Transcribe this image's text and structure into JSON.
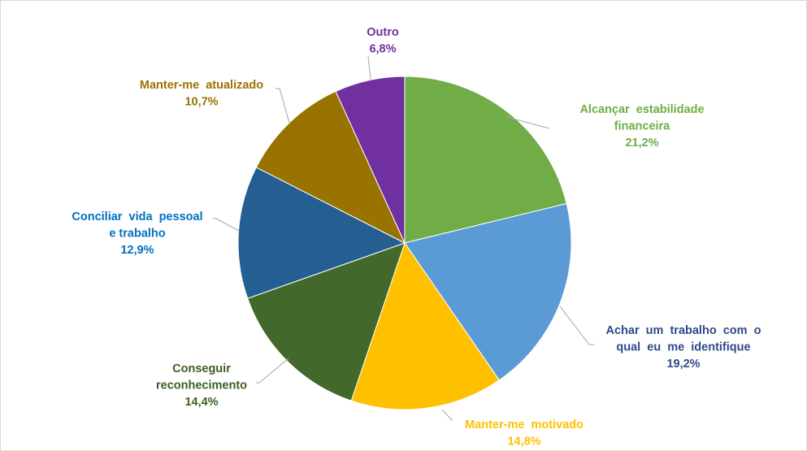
{
  "chart_data": {
    "type": "pie",
    "title": "",
    "start": "top",
    "direction": "clockwise",
    "slices": [
      {
        "label": [
          "Alcançar  estabilidade",
          "financeira"
        ],
        "value": 21.2,
        "value_label": "21,2%",
        "color": "#70AD47",
        "label_color": "#70AD47"
      },
      {
        "label": [
          "Achar  um  trabalho  com  o",
          "qual  eu  me  identifique"
        ],
        "value": 19.2,
        "value_label": "19,2%",
        "color": "#5B9BD5",
        "label_color": "#2F4A8A"
      },
      {
        "label": [
          "Manter-me  motivado"
        ],
        "value": 14.8,
        "value_label": "14,8%",
        "color": "#FFC000",
        "label_color": "#FFC000"
      },
      {
        "label": [
          "Conseguir",
          "reconhecimento"
        ],
        "value": 14.4,
        "value_label": "14,4%",
        "color": "#43682B",
        "label_color": "#3B5E22"
      },
      {
        "label": [
          "Conciliar  vida  pessoal",
          "e trabalho"
        ],
        "value": 12.9,
        "value_label": "12,9%",
        "color": "#255E91",
        "label_color": "#0070C0"
      },
      {
        "label": [
          "Manter-me  atualizado"
        ],
        "value": 10.7,
        "value_label": "10,7%",
        "color": "#997300",
        "label_color": "#997300"
      },
      {
        "label": [
          "Outro"
        ],
        "value": 6.8,
        "value_label": "6,8%",
        "color": "#7030A0",
        "label_color": "#7030A0"
      }
    ]
  }
}
